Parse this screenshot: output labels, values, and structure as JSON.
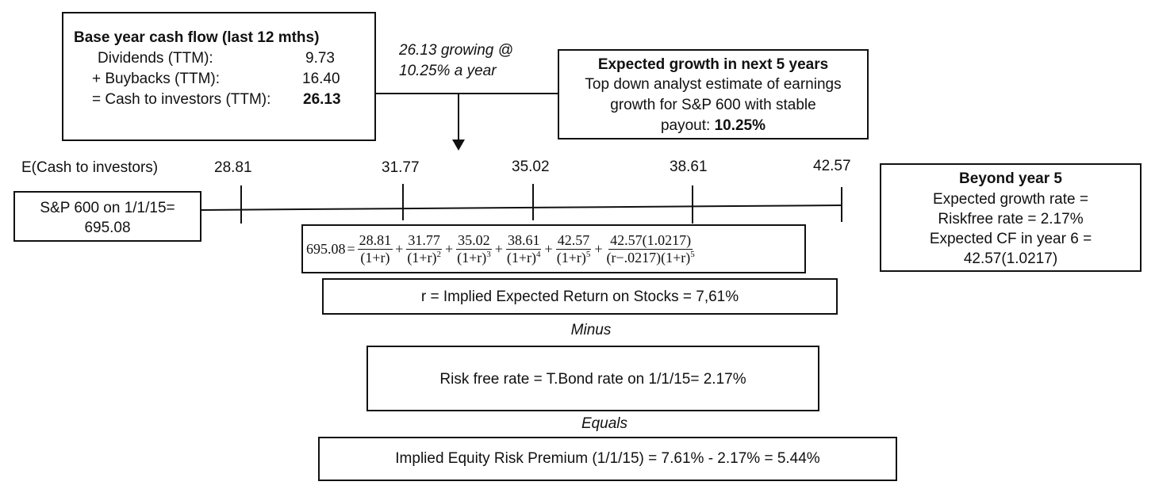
{
  "base_box": {
    "title": "Base year cash flow  (last 12 mths)",
    "rows": [
      {
        "label": "Dividends (TTM):",
        "value": "9.73"
      },
      {
        "label": "+ Buybacks (TTM):",
        "value": "16.40"
      },
      {
        "label": "= Cash to investors (TTM):",
        "value": "26.13"
      }
    ]
  },
  "growing_note": {
    "line1": "26.13 growing @",
    "line2": "10.25% a year"
  },
  "growth_box": {
    "title": "Expected growth in next 5 years",
    "line1": "Top down analyst estimate of earnings",
    "line2": "growth for S&P 600 with stable",
    "line3_prefix": "payout: ",
    "line3_value": "10.25%"
  },
  "timeline": {
    "label": "E(Cash to investors)",
    "values": [
      "28.81",
      "31.77",
      "35.02",
      "38.61",
      "42.57"
    ]
  },
  "sp_box": {
    "line1": "S&P 600 on 1/1/15=",
    "line2": "695.08"
  },
  "equation": {
    "lhs": "695.08",
    "equals": "=",
    "plus": "+",
    "terms": [
      {
        "num": "28.81",
        "den": "(1+r)",
        "exp": ""
      },
      {
        "num": "31.77",
        "den": "(1+r)",
        "exp": "2"
      },
      {
        "num": "35.02",
        "den": "(1+r)",
        "exp": "3"
      },
      {
        "num": "38.61",
        "den": "(1+r)",
        "exp": "4"
      },
      {
        "num": "42.57",
        "den": "(1+r)",
        "exp": "5"
      }
    ],
    "terminal": {
      "num": "42.57(1.0217)",
      "den_part1": "(r−.0217)",
      "den_part2": "(1+r)",
      "exp": "5"
    }
  },
  "beyond_box": {
    "title": "Beyond year 5",
    "lines": [
      "Expected growth rate =",
      "Riskfree rate = 2.17%",
      "Expected CF in year 6 =",
      "42.57(1.0217)"
    ]
  },
  "implied_return": "r = Implied Expected Return on Stocks = 7,61%",
  "minus_label": "Minus",
  "risk_free": "Risk free rate = T.Bond rate on 1/1/15= 2.17%",
  "equals_label": "Equals",
  "premium": "Implied Equity Risk Premium (1/1/15) = 7.61% - 2.17% = 5.44%"
}
